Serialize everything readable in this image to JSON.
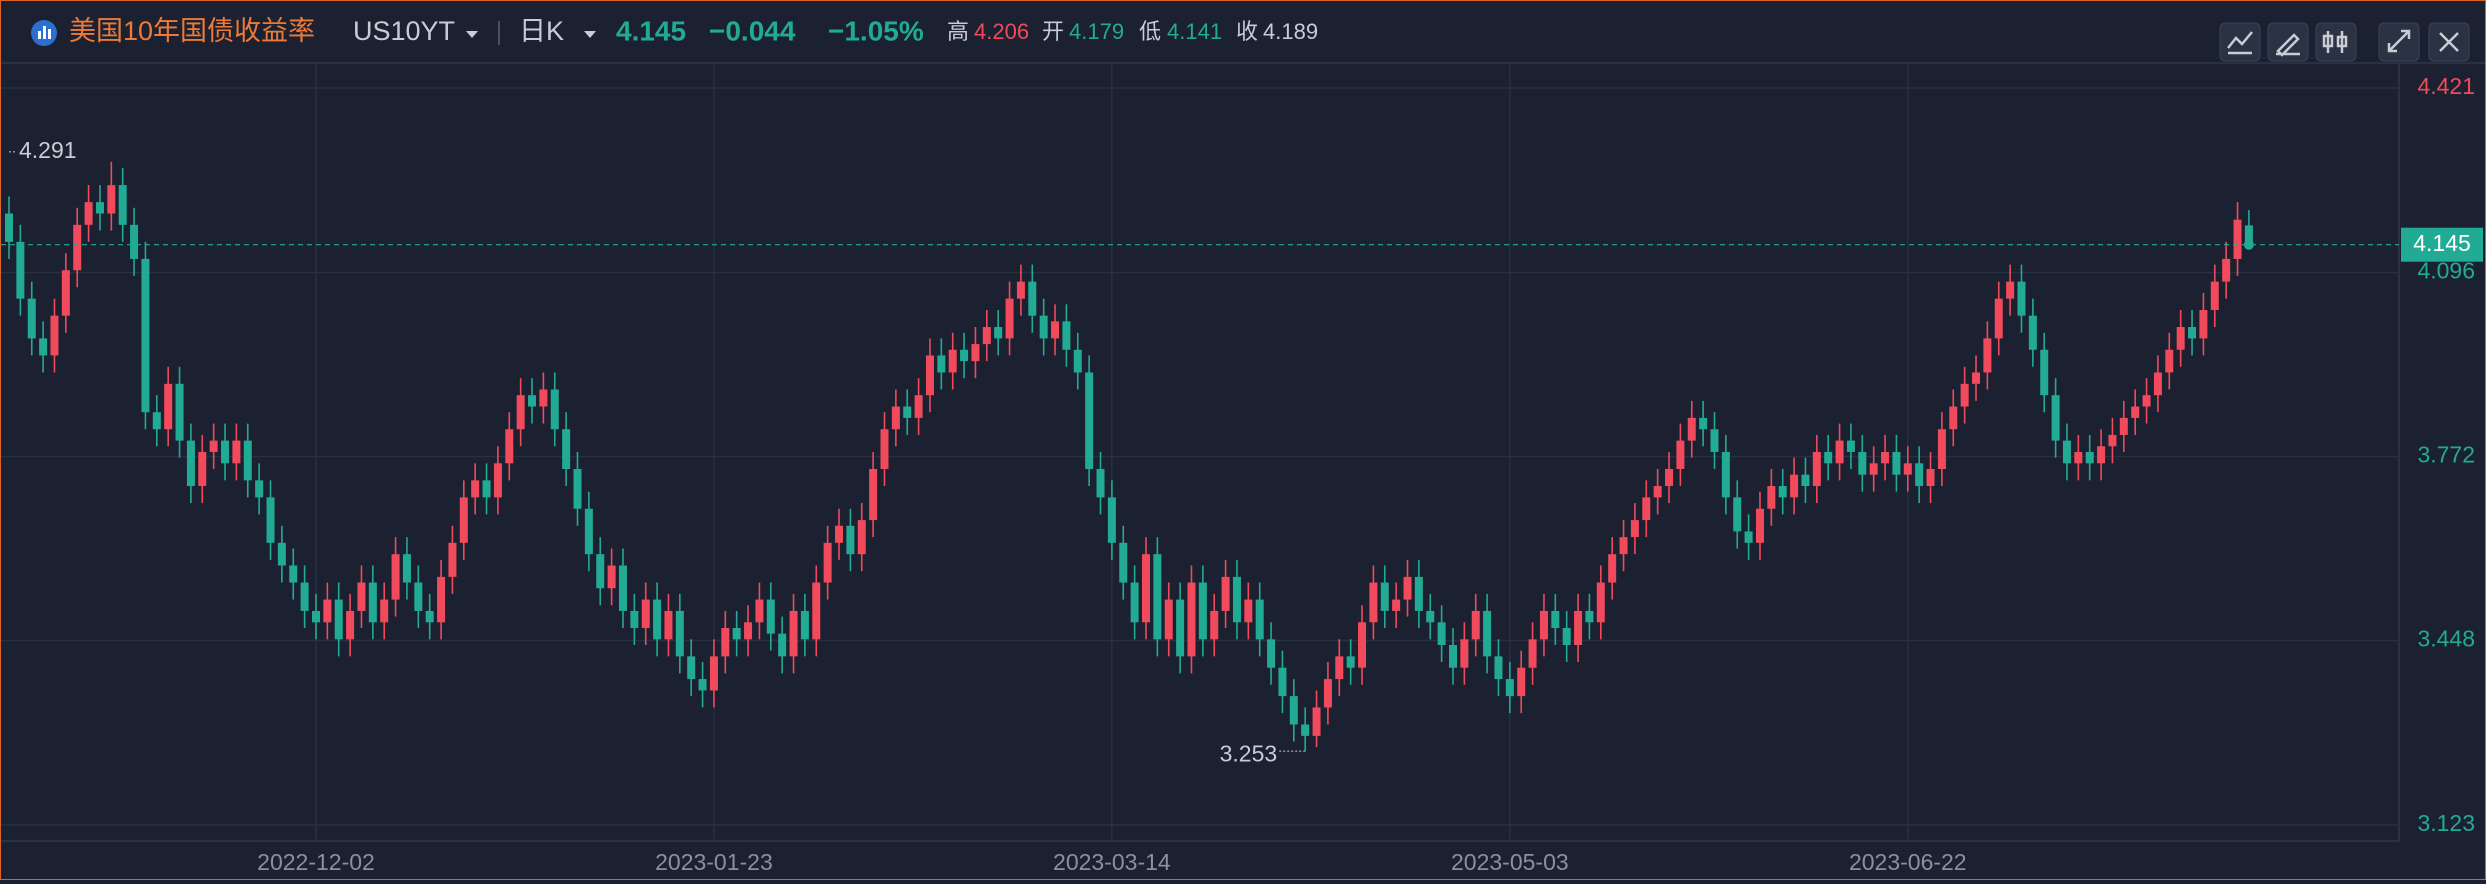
{
  "header": {
    "title": "美国10年国债收益率",
    "symbol": "US10YT",
    "period": "日K",
    "change": "−0.044",
    "change_pct": "−1.05%",
    "labels": {
      "high": "高",
      "open": "开",
      "low": "低",
      "close": "收"
    }
  },
  "chart_data": {
    "type": "candlestick",
    "up_color": "#f04a5c",
    "down_color": "#22ab94",
    "grid": true,
    "y_axis_side": "right",
    "last_price_line": true,
    "ylim": [
      3.123,
      4.421
    ],
    "yticks": [
      3.123,
      3.448,
      3.772,
      4.096,
      4.421
    ],
    "xticks": [
      {
        "value": 27,
        "label": "2022-12-02"
      },
      {
        "value": 62,
        "label": "2023-01-23"
      },
      {
        "value": 97,
        "label": "2023-03-14"
      },
      {
        "value": 132,
        "label": "2023-05-03"
      },
      {
        "value": 167,
        "label": "2023-06-22"
      }
    ],
    "candles": [
      [
        4.2,
        4.23,
        4.12,
        4.15
      ],
      [
        4.15,
        4.18,
        4.02,
        4.05
      ],
      [
        4.05,
        4.08,
        3.95,
        3.98
      ],
      [
        3.98,
        4.01,
        3.92,
        3.95
      ],
      [
        3.95,
        4.05,
        3.92,
        4.02
      ],
      [
        4.02,
        4.13,
        3.99,
        4.1
      ],
      [
        4.1,
        4.21,
        4.07,
        4.18
      ],
      [
        4.18,
        4.25,
        4.15,
        4.22
      ],
      [
        4.22,
        4.25,
        4.17,
        4.2
      ],
      [
        4.2,
        4.291,
        4.17,
        4.25
      ],
      [
        4.25,
        4.28,
        4.15,
        4.18
      ],
      [
        4.18,
        4.21,
        4.09,
        4.12
      ],
      [
        4.12,
        4.15,
        3.82,
        3.85
      ],
      [
        3.85,
        3.88,
        3.79,
        3.82
      ],
      [
        3.82,
        3.93,
        3.79,
        3.9
      ],
      [
        3.9,
        3.93,
        3.77,
        3.8
      ],
      [
        3.8,
        3.83,
        3.69,
        3.72
      ],
      [
        3.72,
        3.81,
        3.69,
        3.78
      ],
      [
        3.78,
        3.83,
        3.75,
        3.8
      ],
      [
        3.8,
        3.83,
        3.73,
        3.76
      ],
      [
        3.76,
        3.83,
        3.73,
        3.8
      ],
      [
        3.8,
        3.83,
        3.7,
        3.73
      ],
      [
        3.73,
        3.76,
        3.67,
        3.7
      ],
      [
        3.7,
        3.73,
        3.59,
        3.62
      ],
      [
        3.62,
        3.65,
        3.55,
        3.58
      ],
      [
        3.58,
        3.61,
        3.52,
        3.55
      ],
      [
        3.55,
        3.58,
        3.47,
        3.5
      ],
      [
        3.5,
        3.53,
        3.45,
        3.48
      ],
      [
        3.48,
        3.55,
        3.45,
        3.52
      ],
      [
        3.52,
        3.55,
        3.42,
        3.45
      ],
      [
        3.45,
        3.53,
        3.42,
        3.5
      ],
      [
        3.5,
        3.58,
        3.47,
        3.55
      ],
      [
        3.55,
        3.58,
        3.45,
        3.48
      ],
      [
        3.48,
        3.55,
        3.45,
        3.52
      ],
      [
        3.52,
        3.63,
        3.49,
        3.6
      ],
      [
        3.6,
        3.63,
        3.52,
        3.55
      ],
      [
        3.55,
        3.58,
        3.47,
        3.5
      ],
      [
        3.5,
        3.53,
        3.45,
        3.48
      ],
      [
        3.48,
        3.59,
        3.45,
        3.56
      ],
      [
        3.56,
        3.65,
        3.53,
        3.62
      ],
      [
        3.62,
        3.73,
        3.59,
        3.7
      ],
      [
        3.7,
        3.76,
        3.67,
        3.73
      ],
      [
        3.73,
        3.76,
        3.67,
        3.7
      ],
      [
        3.7,
        3.79,
        3.67,
        3.76
      ],
      [
        3.76,
        3.85,
        3.73,
        3.82
      ],
      [
        3.82,
        3.91,
        3.79,
        3.88
      ],
      [
        3.88,
        3.91,
        3.83,
        3.86
      ],
      [
        3.86,
        3.92,
        3.83,
        3.89
      ],
      [
        3.89,
        3.92,
        3.79,
        3.82
      ],
      [
        3.82,
        3.85,
        3.72,
        3.75
      ],
      [
        3.75,
        3.78,
        3.65,
        3.68
      ],
      [
        3.68,
        3.71,
        3.57,
        3.6
      ],
      [
        3.6,
        3.63,
        3.51,
        3.54
      ],
      [
        3.54,
        3.61,
        3.51,
        3.58
      ],
      [
        3.58,
        3.61,
        3.47,
        3.5
      ],
      [
        3.5,
        3.53,
        3.44,
        3.47
      ],
      [
        3.47,
        3.55,
        3.44,
        3.52
      ],
      [
        3.52,
        3.55,
        3.42,
        3.45
      ],
      [
        3.45,
        3.53,
        3.42,
        3.5
      ],
      [
        3.5,
        3.53,
        3.39,
        3.42
      ],
      [
        3.42,
        3.45,
        3.35,
        3.38
      ],
      [
        3.38,
        3.41,
        3.33,
        3.36
      ],
      [
        3.36,
        3.45,
        3.33,
        3.42
      ],
      [
        3.42,
        3.5,
        3.39,
        3.47
      ],
      [
        3.47,
        3.5,
        3.42,
        3.45
      ],
      [
        3.45,
        3.51,
        3.42,
        3.48
      ],
      [
        3.48,
        3.55,
        3.45,
        3.52
      ],
      [
        3.52,
        3.55,
        3.43,
        3.46
      ],
      [
        3.46,
        3.49,
        3.39,
        3.42
      ],
      [
        3.42,
        3.53,
        3.39,
        3.5
      ],
      [
        3.5,
        3.53,
        3.42,
        3.45
      ],
      [
        3.45,
        3.58,
        3.42,
        3.55
      ],
      [
        3.55,
        3.65,
        3.52,
        3.62
      ],
      [
        3.62,
        3.68,
        3.59,
        3.65
      ],
      [
        3.65,
        3.68,
        3.57,
        3.6
      ],
      [
        3.6,
        3.69,
        3.57,
        3.66
      ],
      [
        3.66,
        3.78,
        3.63,
        3.75
      ],
      [
        3.75,
        3.85,
        3.72,
        3.82
      ],
      [
        3.82,
        3.89,
        3.79,
        3.86
      ],
      [
        3.86,
        3.89,
        3.81,
        3.84
      ],
      [
        3.84,
        3.91,
        3.81,
        3.88
      ],
      [
        3.88,
        3.98,
        3.85,
        3.95
      ],
      [
        3.95,
        3.98,
        3.89,
        3.92
      ],
      [
        3.92,
        3.99,
        3.89,
        3.96
      ],
      [
        3.96,
        3.99,
        3.91,
        3.94
      ],
      [
        3.94,
        4.0,
        3.91,
        3.97
      ],
      [
        3.97,
        4.03,
        3.94,
        4.0
      ],
      [
        4.0,
        4.03,
        3.95,
        3.98
      ],
      [
        3.98,
        4.08,
        3.95,
        4.05
      ],
      [
        4.05,
        4.11,
        4.02,
        4.08
      ],
      [
        4.08,
        4.11,
        3.99,
        4.02
      ],
      [
        4.02,
        4.05,
        3.95,
        3.98
      ],
      [
        3.98,
        4.04,
        3.95,
        4.01
      ],
      [
        4.01,
        4.04,
        3.93,
        3.96
      ],
      [
        3.96,
        3.99,
        3.89,
        3.92
      ],
      [
        3.92,
        3.95,
        3.72,
        3.75
      ],
      [
        3.75,
        3.78,
        3.67,
        3.7
      ],
      [
        3.7,
        3.73,
        3.59,
        3.62
      ],
      [
        3.62,
        3.65,
        3.52,
        3.55
      ],
      [
        3.55,
        3.58,
        3.45,
        3.48
      ],
      [
        3.48,
        3.63,
        3.45,
        3.6
      ],
      [
        3.6,
        3.63,
        3.42,
        3.45
      ],
      [
        3.45,
        3.55,
        3.42,
        3.52
      ],
      [
        3.52,
        3.55,
        3.39,
        3.42
      ],
      [
        3.42,
        3.58,
        3.39,
        3.55
      ],
      [
        3.55,
        3.58,
        3.42,
        3.45
      ],
      [
        3.45,
        3.53,
        3.42,
        3.5
      ],
      [
        3.5,
        3.59,
        3.47,
        3.56
      ],
      [
        3.56,
        3.59,
        3.45,
        3.48
      ],
      [
        3.48,
        3.55,
        3.45,
        3.52
      ],
      [
        3.52,
        3.55,
        3.42,
        3.45
      ],
      [
        3.45,
        3.48,
        3.37,
        3.4
      ],
      [
        3.4,
        3.43,
        3.32,
        3.35
      ],
      [
        3.35,
        3.38,
        3.27,
        3.3
      ],
      [
        3.3,
        3.33,
        3.253,
        3.28
      ],
      [
        3.28,
        3.36,
        3.26,
        3.33
      ],
      [
        3.33,
        3.41,
        3.3,
        3.38
      ],
      [
        3.38,
        3.45,
        3.35,
        3.42
      ],
      [
        3.42,
        3.45,
        3.37,
        3.4
      ],
      [
        3.4,
        3.51,
        3.37,
        3.48
      ],
      [
        3.48,
        3.58,
        3.45,
        3.55
      ],
      [
        3.55,
        3.58,
        3.47,
        3.5
      ],
      [
        3.5,
        3.55,
        3.47,
        3.52
      ],
      [
        3.52,
        3.59,
        3.49,
        3.56
      ],
      [
        3.56,
        3.59,
        3.47,
        3.5
      ],
      [
        3.5,
        3.53,
        3.45,
        3.48
      ],
      [
        3.48,
        3.51,
        3.41,
        3.44
      ],
      [
        3.44,
        3.47,
        3.37,
        3.4
      ],
      [
        3.4,
        3.48,
        3.37,
        3.45
      ],
      [
        3.45,
        3.53,
        3.42,
        3.5
      ],
      [
        3.5,
        3.53,
        3.39,
        3.42
      ],
      [
        3.42,
        3.45,
        3.35,
        3.38
      ],
      [
        3.38,
        3.41,
        3.32,
        3.35
      ],
      [
        3.35,
        3.43,
        3.32,
        3.4
      ],
      [
        3.4,
        3.48,
        3.37,
        3.45
      ],
      [
        3.45,
        3.53,
        3.42,
        3.5
      ],
      [
        3.5,
        3.53,
        3.44,
        3.47
      ],
      [
        3.47,
        3.5,
        3.41,
        3.44
      ],
      [
        3.44,
        3.53,
        3.41,
        3.5
      ],
      [
        3.5,
        3.53,
        3.45,
        3.48
      ],
      [
        3.48,
        3.58,
        3.45,
        3.55
      ],
      [
        3.55,
        3.63,
        3.52,
        3.6
      ],
      [
        3.6,
        3.66,
        3.57,
        3.63
      ],
      [
        3.63,
        3.69,
        3.6,
        3.66
      ],
      [
        3.66,
        3.73,
        3.63,
        3.7
      ],
      [
        3.7,
        3.75,
        3.67,
        3.72
      ],
      [
        3.72,
        3.78,
        3.69,
        3.75
      ],
      [
        3.75,
        3.83,
        3.72,
        3.8
      ],
      [
        3.8,
        3.87,
        3.77,
        3.84
      ],
      [
        3.84,
        3.87,
        3.79,
        3.82
      ],
      [
        3.82,
        3.85,
        3.75,
        3.78
      ],
      [
        3.78,
        3.81,
        3.67,
        3.7
      ],
      [
        3.7,
        3.73,
        3.61,
        3.64
      ],
      [
        3.64,
        3.67,
        3.59,
        3.62
      ],
      [
        3.62,
        3.71,
        3.59,
        3.68
      ],
      [
        3.68,
        3.75,
        3.65,
        3.72
      ],
      [
        3.72,
        3.75,
        3.67,
        3.7
      ],
      [
        3.7,
        3.77,
        3.67,
        3.74
      ],
      [
        3.74,
        3.77,
        3.69,
        3.72
      ],
      [
        3.72,
        3.81,
        3.69,
        3.78
      ],
      [
        3.78,
        3.81,
        3.73,
        3.76
      ],
      [
        3.76,
        3.83,
        3.73,
        3.8
      ],
      [
        3.8,
        3.83,
        3.75,
        3.78
      ],
      [
        3.78,
        3.81,
        3.71,
        3.74
      ],
      [
        3.74,
        3.79,
        3.71,
        3.76
      ],
      [
        3.76,
        3.81,
        3.73,
        3.78
      ],
      [
        3.78,
        3.81,
        3.71,
        3.74
      ],
      [
        3.74,
        3.79,
        3.71,
        3.76
      ],
      [
        3.76,
        3.79,
        3.69,
        3.72
      ],
      [
        3.72,
        3.78,
        3.69,
        3.75
      ],
      [
        3.75,
        3.85,
        3.72,
        3.82
      ],
      [
        3.82,
        3.89,
        3.79,
        3.86
      ],
      [
        3.86,
        3.93,
        3.83,
        3.9
      ],
      [
        3.9,
        3.95,
        3.87,
        3.92
      ],
      [
        3.92,
        4.01,
        3.89,
        3.98
      ],
      [
        3.98,
        4.08,
        3.95,
        4.05
      ],
      [
        4.05,
        4.11,
        4.02,
        4.08
      ],
      [
        4.08,
        4.11,
        3.99,
        4.02
      ],
      [
        4.02,
        4.05,
        3.93,
        3.96
      ],
      [
        3.96,
        3.99,
        3.85,
        3.88
      ],
      [
        3.88,
        3.91,
        3.77,
        3.8
      ],
      [
        3.8,
        3.83,
        3.73,
        3.76
      ],
      [
        3.76,
        3.81,
        3.73,
        3.78
      ],
      [
        3.78,
        3.81,
        3.73,
        3.76
      ],
      [
        3.76,
        3.82,
        3.73,
        3.79
      ],
      [
        3.79,
        3.84,
        3.76,
        3.81
      ],
      [
        3.81,
        3.87,
        3.78,
        3.84
      ],
      [
        3.84,
        3.89,
        3.81,
        3.86
      ],
      [
        3.86,
        3.91,
        3.83,
        3.88
      ],
      [
        3.88,
        3.95,
        3.85,
        3.92
      ],
      [
        3.92,
        3.99,
        3.89,
        3.96
      ],
      [
        3.96,
        4.03,
        3.93,
        4.0
      ],
      [
        4.0,
        4.03,
        3.95,
        3.98
      ],
      [
        3.98,
        4.06,
        3.95,
        4.03
      ],
      [
        4.03,
        4.11,
        4.0,
        4.08
      ],
      [
        4.08,
        4.15,
        4.05,
        4.12
      ],
      [
        4.12,
        4.22,
        4.09,
        4.189
      ],
      [
        4.179,
        4.206,
        4.141,
        4.145
      ]
    ]
  }
}
